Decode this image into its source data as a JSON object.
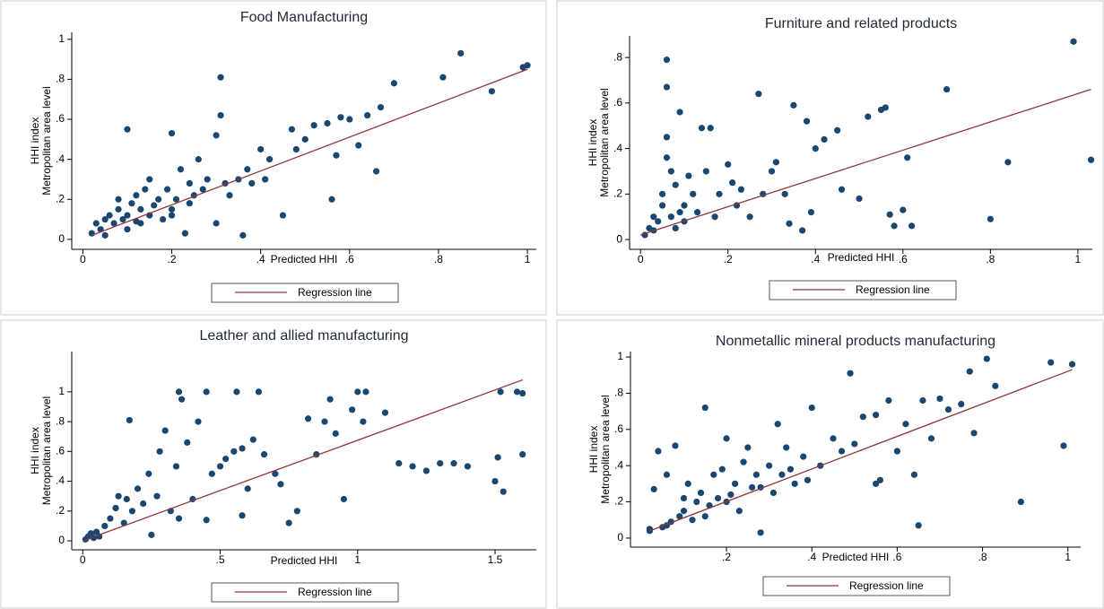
{
  "chart_data": [
    {
      "type": "scatter",
      "title": "Food Manufacturing",
      "xlabel": "Predicted HHI",
      "ylabel": "HHI index",
      "ylabel2": "Metropolitan area level",
      "xlim": [
        -0.025,
        1.02
      ],
      "ylim": [
        -0.05,
        1.035
      ],
      "xticks": [
        0,
        {
          "value": 0.2,
          "label": ".2"
        },
        {
          "value": 0.4,
          "label": ".4"
        },
        {
          "value": 0.6,
          "label": ".6"
        },
        {
          "value": 0.8,
          "label": ".8"
        },
        1
      ],
      "yticks": [
        0,
        {
          "value": 0.2,
          "label": ".2"
        },
        {
          "value": 0.4,
          "label": ".4"
        },
        {
          "value": 0.6,
          "label": ".6"
        },
        {
          "value": 0.8,
          "label": ".8"
        },
        1
      ],
      "series": [
        {
          "kind": "points",
          "color": "#1a476f",
          "x": [
            0.02,
            0.03,
            0.04,
            0.05,
            0.05,
            0.06,
            0.07,
            0.08,
            0.08,
            0.09,
            0.1,
            0.1,
            0.11,
            0.12,
            0.12,
            0.13,
            0.14,
            0.15,
            0.15,
            0.16,
            0.17,
            0.18,
            0.19,
            0.2,
            0.2,
            0.21,
            0.22,
            0.23,
            0.24,
            0.25,
            0.26,
            0.27,
            0.28,
            0.3,
            0.31,
            0.31,
            0.32,
            0.33,
            0.35,
            0.36,
            0.37,
            0.38,
            0.4,
            0.41,
            0.42,
            0.45,
            0.47,
            0.48,
            0.5,
            0.52,
            0.55,
            0.56,
            0.57,
            0.58,
            0.6,
            0.62,
            0.64,
            0.66,
            0.67,
            0.7,
            0.81,
            0.85,
            0.92,
            0.99,
            1,
            0.1,
            0.13,
            0.2,
            0.24,
            0.3
          ],
          "values": [
            0.03,
            0.08,
            0.05,
            0.1,
            0.02,
            0.12,
            0.08,
            0.15,
            0.2,
            0.1,
            0.12,
            0.55,
            0.18,
            0.09,
            0.22,
            0.15,
            0.25,
            0.12,
            0.3,
            0.17,
            0.2,
            0.1,
            0.25,
            0.53,
            0.15,
            0.2,
            0.35,
            0.03,
            0.28,
            0.22,
            0.4,
            0.25,
            0.3,
            0.52,
            0.81,
            0.62,
            0.28,
            0.22,
            0.3,
            0.02,
            0.35,
            0.28,
            0.45,
            0.3,
            0.4,
            0.12,
            0.55,
            0.45,
            0.5,
            0.57,
            0.58,
            0.2,
            0.42,
            0.61,
            0.6,
            0.47,
            0.62,
            0.34,
            0.66,
            0.78,
            0.81,
            0.93,
            0.74,
            0.86,
            0.87,
            0.05,
            0.08,
            0.12,
            0.18,
            0.08
          ]
        },
        {
          "kind": "line",
          "name": "Regression line",
          "color": "#90353b",
          "x": [
            0.02,
            1
          ],
          "values": [
            0.02,
            0.85
          ]
        }
      ]
    },
    {
      "type": "scatter",
      "title": "Furniture and related products",
      "xlabel": "Predicted HHI",
      "ylabel": "HHI index",
      "ylabel2": "Metropolitan area level",
      "xlim": [
        -0.025,
        1.033
      ],
      "ylim": [
        -0.043,
        0.895
      ],
      "xticks": [
        0,
        {
          "value": 0.2,
          "label": ".2"
        },
        {
          "value": 0.4,
          "label": ".4"
        },
        {
          "value": 0.6,
          "label": ".6"
        },
        {
          "value": 0.8,
          "label": ".8"
        },
        1
      ],
      "yticks": [
        0,
        {
          "value": 0.2,
          "label": ".2"
        },
        {
          "value": 0.4,
          "label": ".4"
        },
        {
          "value": 0.6,
          "label": ".6"
        },
        {
          "value": 0.8,
          "label": ".8"
        }
      ],
      "series": [
        {
          "kind": "points",
          "color": "#1a476f",
          "x": [
            0.01,
            0.02,
            0.03,
            0.03,
            0.04,
            0.05,
            0.05,
            0.06,
            0.06,
            0.06,
            0.07,
            0.07,
            0.08,
            0.08,
            0.09,
            0.1,
            0.1,
            0.11,
            0.12,
            0.13,
            0.14,
            0.15,
            0.16,
            0.17,
            0.18,
            0.2,
            0.21,
            0.22,
            0.23,
            0.25,
            0.27,
            0.28,
            0.3,
            0.31,
            0.33,
            0.34,
            0.35,
            0.37,
            0.38,
            0.39,
            0.4,
            0.42,
            0.45,
            0.46,
            0.5,
            0.52,
            0.55,
            0.56,
            0.57,
            0.58,
            0.6,
            0.61,
            0.62,
            0.7,
            0.8,
            0.84,
            0.99,
            1.03,
            0.06,
            0.09
          ],
          "values": [
            0.02,
            0.05,
            0.04,
            0.1,
            0.08,
            0.15,
            0.2,
            0.79,
            0.67,
            0.45,
            0.1,
            0.3,
            0.05,
            0.24,
            0.56,
            0.15,
            0.08,
            0.28,
            0.2,
            0.12,
            0.49,
            0.3,
            0.49,
            0.1,
            0.2,
            0.33,
            0.25,
            0.15,
            0.22,
            0.1,
            0.64,
            0.2,
            0.3,
            0.34,
            0.2,
            0.07,
            0.59,
            0.04,
            0.52,
            0.12,
            0.4,
            0.44,
            0.48,
            0.22,
            0.18,
            0.54,
            0.57,
            0.58,
            0.11,
            0.06,
            0.13,
            0.36,
            0.06,
            0.66,
            0.09,
            0.34,
            0.87,
            0.35,
            0.36,
            0.12
          ]
        },
        {
          "kind": "line",
          "name": "Regression line",
          "color": "#90353b",
          "x": [
            0,
            1.03
          ],
          "values": [
            0.02,
            0.66
          ]
        }
      ]
    },
    {
      "type": "scatter",
      "title": "Leather and allied manufacturing",
      "xlabel": "Predicted HHI",
      "ylabel": "HHI index",
      "ylabel2": "Metropolitan area level",
      "xlim": [
        -0.04,
        1.65
      ],
      "ylim": [
        -0.06,
        1.27
      ],
      "xticks": [
        0,
        {
          "value": 0.5,
          "label": ".5"
        },
        1,
        1.5
      ],
      "yticks": [
        0,
        {
          "value": 0.2,
          "label": ".2"
        },
        {
          "value": 0.4,
          "label": ".4"
        },
        {
          "value": 0.6,
          "label": ".6"
        },
        {
          "value": 0.8,
          "label": ".8"
        },
        1
      ],
      "series": [
        {
          "kind": "points",
          "color": "#1a476f",
          "x": [
            0.01,
            0.02,
            0.03,
            0.04,
            0.05,
            0.06,
            0.08,
            0.1,
            0.12,
            0.13,
            0.15,
            0.17,
            0.18,
            0.2,
            0.22,
            0.24,
            0.25,
            0.27,
            0.28,
            0.3,
            0.32,
            0.34,
            0.35,
            0.36,
            0.38,
            0.4,
            0.42,
            0.45,
            0.47,
            0.5,
            0.52,
            0.55,
            0.56,
            0.58,
            0.6,
            0.62,
            0.64,
            0.66,
            0.7,
            0.72,
            0.75,
            0.78,
            0.82,
            0.85,
            0.88,
            0.9,
            0.92,
            0.95,
            0.98,
            1,
            1.02,
            1.03,
            1.1,
            1.15,
            1.2,
            1.25,
            1.3,
            1.35,
            1.4,
            1.5,
            1.51,
            1.52,
            1.53,
            1.58,
            1.6,
            1.6,
            0.35,
            0.45,
            0.58,
            0.16
          ],
          "values": [
            0.01,
            0.03,
            0.05,
            0.02,
            0.06,
            0.03,
            0.1,
            0.15,
            0.22,
            0.3,
            0.12,
            0.81,
            0.2,
            0.35,
            0.25,
            0.45,
            0.04,
            0.3,
            0.6,
            0.74,
            0.2,
            0.5,
            1,
            0.95,
            0.66,
            0.28,
            0.8,
            1,
            0.45,
            0.5,
            0.55,
            0.6,
            1,
            0.62,
            0.35,
            0.68,
            1,
            0.58,
            0.45,
            0.38,
            0.12,
            0.2,
            0.82,
            0.58,
            0.8,
            0.95,
            0.72,
            0.28,
            0.88,
            1,
            0.8,
            1,
            0.86,
            0.52,
            0.5,
            0.47,
            0.52,
            0.52,
            0.5,
            0.4,
            0.56,
            1,
            0.33,
            1,
            0.58,
            0.99,
            0.15,
            0.14,
            0.17,
            0.28
          ]
        },
        {
          "kind": "line",
          "name": "Regression line",
          "color": "#90353b",
          "x": [
            0,
            1.6
          ],
          "values": [
            0,
            1.08
          ]
        }
      ]
    },
    {
      "type": "scatter",
      "title": "Nonmetallic mineral products manufacturing",
      "xlabel": "Predicted HHI",
      "ylabel": "HHI index",
      "ylabel2": "Metropolitan area level",
      "xlim": [
        -0.025,
        1.03
      ],
      "ylim": [
        -0.05,
        1.03
      ],
      "xticks": [
        {
          "value": 0.2,
          "label": ".2"
        },
        {
          "value": 0.4,
          "label": ".4"
        },
        {
          "value": 0.6,
          "label": ".6"
        },
        {
          "value": 0.8,
          "label": ".8"
        },
        1
      ],
      "yticks": [
        0,
        {
          "value": 0.2,
          "label": ".2"
        },
        {
          "value": 0.4,
          "label": ".4"
        },
        {
          "value": 0.6,
          "label": ".6"
        },
        {
          "value": 0.8,
          "label": ".8"
        },
        1
      ],
      "series": [
        {
          "kind": "points",
          "color": "#1a476f",
          "x": [
            0.02,
            0.03,
            0.04,
            0.05,
            0.06,
            0.07,
            0.08,
            0.09,
            0.1,
            0.1,
            0.11,
            0.12,
            0.13,
            0.14,
            0.15,
            0.16,
            0.17,
            0.18,
            0.19,
            0.2,
            0.21,
            0.22,
            0.23,
            0.24,
            0.25,
            0.26,
            0.27,
            0.28,
            0.3,
            0.31,
            0.32,
            0.33,
            0.34,
            0.35,
            0.36,
            0.38,
            0.39,
            0.4,
            0.42,
            0.45,
            0.47,
            0.49,
            0.5,
            0.52,
            0.55,
            0.56,
            0.58,
            0.6,
            0.62,
            0.64,
            0.65,
            0.66,
            0.68,
            0.7,
            0.72,
            0.75,
            0.77,
            0.78,
            0.81,
            0.83,
            0.89,
            0.96,
            0.99,
            1.01,
            0.02,
            0.06,
            0.15,
            0.2,
            0.28,
            0.55
          ],
          "values": [
            0.04,
            0.27,
            0.48,
            0.06,
            0.35,
            0.09,
            0.51,
            0.12,
            0.15,
            0.22,
            0.3,
            0.1,
            0.2,
            0.25,
            0.72,
            0.18,
            0.35,
            0.22,
            0.38,
            0.55,
            0.24,
            0.3,
            0.15,
            0.42,
            0.5,
            0.28,
            0.35,
            0.03,
            0.4,
            0.25,
            0.63,
            0.35,
            0.5,
            0.38,
            0.3,
            0.45,
            0.32,
            0.72,
            0.4,
            0.55,
            0.48,
            0.91,
            0.52,
            0.67,
            0.68,
            0.32,
            0.76,
            0.48,
            0.63,
            0.35,
            0.07,
            0.76,
            0.55,
            0.77,
            0.71,
            0.74,
            0.92,
            0.58,
            0.99,
            0.84,
            0.2,
            0.97,
            0.51,
            0.96,
            0.05,
            0.07,
            0.12,
            0.2,
            0.28,
            0.3
          ]
        },
        {
          "kind": "line",
          "name": "Regression line",
          "color": "#90353b",
          "x": [
            0.02,
            1.01
          ],
          "values": [
            0.04,
            0.93
          ]
        }
      ]
    }
  ]
}
